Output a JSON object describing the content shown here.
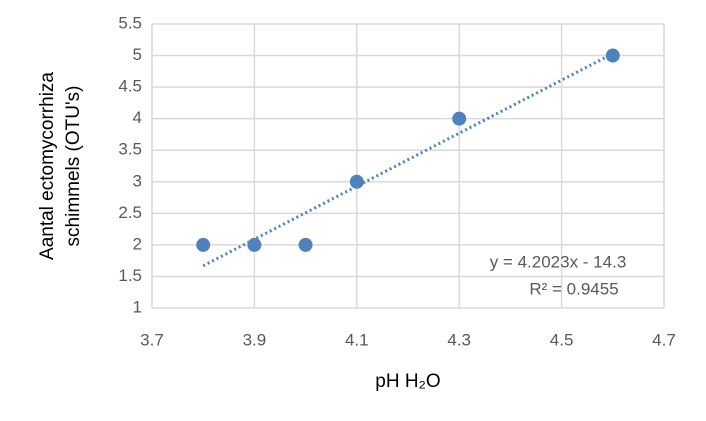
{
  "chart_data": {
    "type": "scatter",
    "x_label": "pH H₂O",
    "y_label": [
      "Aantal ectomycorrhiza",
      "schimmels (OTU's)"
    ],
    "x": [
      3.8,
      3.9,
      4.0,
      4.1,
      4.3,
      4.6
    ],
    "values": [
      2,
      2,
      2,
      3,
      4,
      5
    ],
    "color": "#4f81bd",
    "xlim": [
      3.7,
      4.7
    ],
    "xticks": [
      3.7,
      3.9,
      4.1,
      4.3,
      4.5,
      4.7
    ],
    "ylim": [
      1,
      5.5
    ],
    "yticks": [
      1,
      1.5,
      2,
      2.5,
      3,
      3.5,
      4,
      4.5,
      5,
      5.5
    ],
    "grid": true,
    "trendline": {
      "equation": "y = 4.2023x - 14.3",
      "r2": "R² = 0.9455",
      "slope": 4.2023,
      "intercept": -14.3
    }
  }
}
